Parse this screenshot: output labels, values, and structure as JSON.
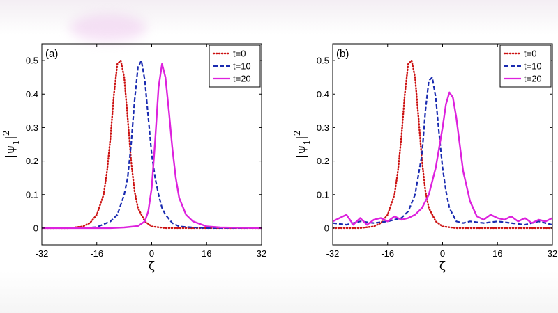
{
  "chart_data": [
    {
      "type": "line",
      "panel_label": "(a)",
      "xlabel": "ζ",
      "ylabel": "|ψ1|2",
      "xlim": [
        -32,
        32
      ],
      "ylim": [
        -0.05,
        0.55
      ],
      "xticks": [
        -32,
        -16,
        0,
        16,
        32
      ],
      "yticks": [
        0,
        0.1,
        0.2,
        0.3,
        0.4,
        0.5
      ],
      "xtick_labels": [
        "-32",
        "-16",
        "0",
        "16",
        "32"
      ],
      "ytick_labels": [
        "0",
        "0.1",
        "0.2",
        "0.3",
        "0.4",
        "0.5"
      ],
      "legend_position": "top-right",
      "series": [
        {
          "name": "t=0",
          "color": "#cc1111",
          "style": "dotted",
          "x": [
            -32,
            -24,
            -20,
            -18,
            -16,
            -14,
            -13,
            -12,
            -11,
            -10,
            -9,
            -8,
            -7,
            -6,
            -5,
            -4,
            -2,
            0,
            4,
            8,
            16,
            32
          ],
          "y": [
            0,
            0.0,
            0.005,
            0.015,
            0.04,
            0.1,
            0.17,
            0.27,
            0.4,
            0.49,
            0.5,
            0.45,
            0.33,
            0.2,
            0.11,
            0.06,
            0.02,
            0.005,
            0,
            0,
            0,
            0
          ]
        },
        {
          "name": "t=10",
          "color": "#1a2bb0",
          "style": "dashed",
          "x": [
            -32,
            -20,
            -16,
            -12,
            -10,
            -8,
            -7,
            -6,
            -5,
            -4,
            -3,
            -2,
            -1,
            0,
            1,
            2,
            3,
            4,
            6,
            8,
            12,
            16,
            32
          ],
          "y": [
            0,
            0,
            0.003,
            0.02,
            0.04,
            0.1,
            0.15,
            0.25,
            0.38,
            0.48,
            0.5,
            0.44,
            0.33,
            0.22,
            0.15,
            0.1,
            0.06,
            0.04,
            0.015,
            0.005,
            0.002,
            0,
            0
          ]
        },
        {
          "name": "t=20",
          "color": "#dd22dd",
          "style": "solid",
          "x": [
            -32,
            -20,
            -12,
            -8,
            -4,
            -2,
            -1,
            0,
            1,
            2,
            3,
            4,
            5,
            6,
            7,
            8,
            10,
            12,
            16,
            20,
            32
          ],
          "y": [
            0,
            0,
            0,
            0.002,
            0.006,
            0.02,
            0.05,
            0.12,
            0.26,
            0.42,
            0.49,
            0.45,
            0.35,
            0.24,
            0.15,
            0.09,
            0.04,
            0.02,
            0.005,
            0.002,
            0
          ]
        }
      ]
    },
    {
      "type": "line",
      "panel_label": "(b)",
      "xlabel": "ζ",
      "ylabel": "|ψ1|2",
      "xlim": [
        -32,
        32
      ],
      "ylim": [
        -0.05,
        0.55
      ],
      "xticks": [
        -32,
        -16,
        0,
        16,
        32
      ],
      "yticks": [
        0,
        0.1,
        0.2,
        0.3,
        0.4,
        0.5
      ],
      "xtick_labels": [
        "-32",
        "-16",
        "0",
        "16",
        "32"
      ],
      "ytick_labels": [
        "0",
        "0.1",
        "0.2",
        "0.3",
        "0.4",
        "0.5"
      ],
      "legend_position": "top-right",
      "series": [
        {
          "name": "t=0",
          "color": "#cc1111",
          "style": "dotted",
          "x": [
            -32,
            -24,
            -20,
            -18,
            -16,
            -14,
            -13,
            -12,
            -11,
            -10,
            -9,
            -8,
            -7,
            -6,
            -5,
            -4,
            -2,
            0,
            4,
            8,
            16,
            32
          ],
          "y": [
            0,
            0.0,
            0.005,
            0.015,
            0.04,
            0.1,
            0.17,
            0.27,
            0.4,
            0.49,
            0.5,
            0.45,
            0.33,
            0.2,
            0.11,
            0.06,
            0.02,
            0.005,
            0,
            0,
            0,
            0
          ]
        },
        {
          "name": "t=10",
          "color": "#1a2bb0",
          "style": "dashed",
          "x": [
            -32,
            -28,
            -24,
            -20,
            -16,
            -12,
            -10,
            -8,
            -6,
            -5,
            -4,
            -3,
            -2,
            -1,
            0,
            1,
            2,
            4,
            6,
            8,
            12,
            16,
            20,
            24,
            28,
            32
          ],
          "y": [
            0.015,
            0.01,
            0.02,
            0.015,
            0.02,
            0.03,
            0.05,
            0.1,
            0.22,
            0.35,
            0.44,
            0.45,
            0.39,
            0.28,
            0.18,
            0.11,
            0.06,
            0.02,
            0.015,
            0.02,
            0.015,
            0.02,
            0.015,
            0.01,
            0.02,
            0.01
          ]
        },
        {
          "name": "t=20",
          "color": "#dd22dd",
          "style": "solid",
          "x": [
            -32,
            -30,
            -28,
            -26,
            -24,
            -22,
            -20,
            -18,
            -16,
            -14,
            -12,
            -10,
            -8,
            -6,
            -4,
            -2,
            0,
            1,
            2,
            3,
            4,
            5,
            6,
            8,
            10,
            12,
            14,
            16,
            18,
            20,
            22,
            24,
            26,
            28,
            30,
            32
          ],
          "y": [
            0.02,
            0.03,
            0.04,
            0.01,
            0.03,
            0.01,
            0.025,
            0.03,
            0.02,
            0.035,
            0.025,
            0.03,
            0.04,
            0.06,
            0.1,
            0.18,
            0.3,
            0.37,
            0.405,
            0.39,
            0.33,
            0.25,
            0.17,
            0.08,
            0.035,
            0.025,
            0.04,
            0.03,
            0.025,
            0.035,
            0.02,
            0.03,
            0.015,
            0.025,
            0.02,
            0.03
          ]
        }
      ]
    }
  ]
}
